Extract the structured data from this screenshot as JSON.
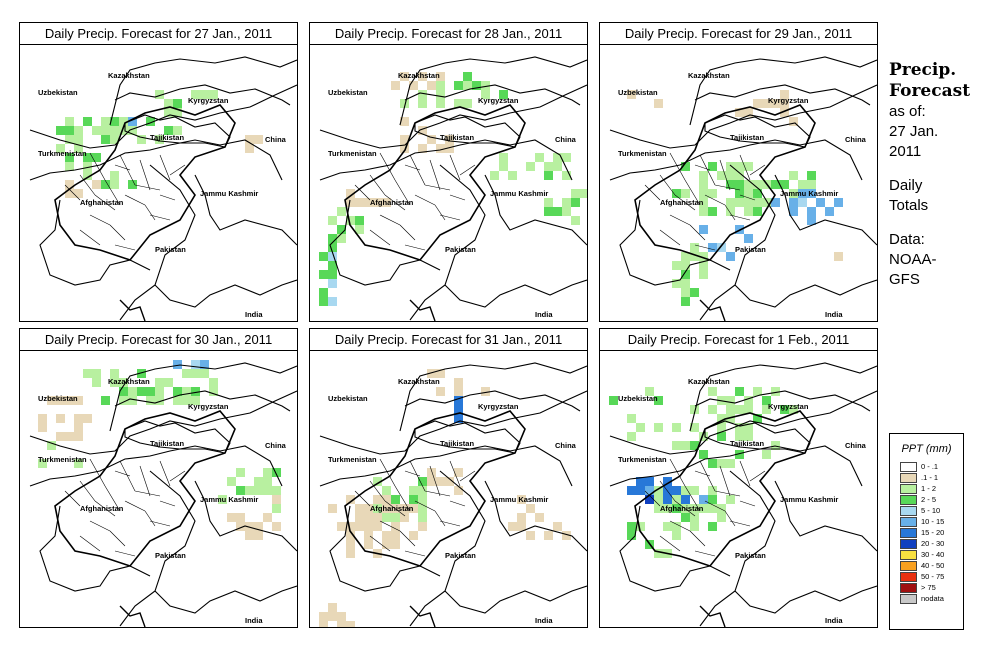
{
  "panels": [
    {
      "title": "Daily Precip. Forecast for  27 Jan., 2011"
    },
    {
      "title": "Daily Precip. Forecast for  28 Jan., 2011"
    },
    {
      "title": "Daily Precip. Forecast for  29 Jan., 2011"
    },
    {
      "title": "Daily Precip. Forecast for  30 Jan., 2011"
    },
    {
      "title": "Daily Precip. Forecast for  31 Jan., 2011"
    },
    {
      "title": "Daily Precip. Forecast for  1 Feb., 2011"
    }
  ],
  "map_labels": {
    "uzbekistan": "Uzbekistan",
    "kazakhstan": "Kazakhstan",
    "kyrgyzstan": "Kyrgyzstan",
    "tajikistan": "Tajikistan",
    "turkmenistan": "Turkmenistan",
    "china": "China",
    "afghanistan": "Afghanistan",
    "jammu_kashmir": "Jammu Kashmir",
    "pakistan": "Pakistan",
    "india": "India"
  },
  "sidebar": {
    "title_line1": "Precip.",
    "title_line2": "Forecast",
    "asof_line1": "as of:",
    "asof_line2": "27 Jan.",
    "asof_line3": "2011",
    "daily_line1": "Daily",
    "daily_line2": "Totals",
    "data_line1": "Data:",
    "data_line2": "NOAA-",
    "data_line3": "GFS"
  },
  "legend": {
    "title": "PPT (mm)",
    "items": [
      {
        "label": "0 - .1",
        "color": "#ffffff"
      },
      {
        "label": ".1 - 1",
        "color": "#e8d8b8"
      },
      {
        "label": "1 - 2",
        "color": "#b8f0a0"
      },
      {
        "label": "2 - 5",
        "color": "#58d858"
      },
      {
        "label": "5 - 10",
        "color": "#a8d8f0"
      },
      {
        "label": "10 - 15",
        "color": "#68b0e8"
      },
      {
        "label": "15 - 20",
        "color": "#2878d8"
      },
      {
        "label": "20 - 30",
        "color": "#1040c0"
      },
      {
        "label": "30 - 40",
        "color": "#f8e040"
      },
      {
        "label": "40 - 50",
        "color": "#f8a020"
      },
      {
        "label": "50 - 75",
        "color": "#e83010"
      },
      {
        "label": "> 75",
        "color": "#a01010"
      },
      {
        "label": "nodata",
        "color": "#c8c8c8"
      }
    ]
  }
}
